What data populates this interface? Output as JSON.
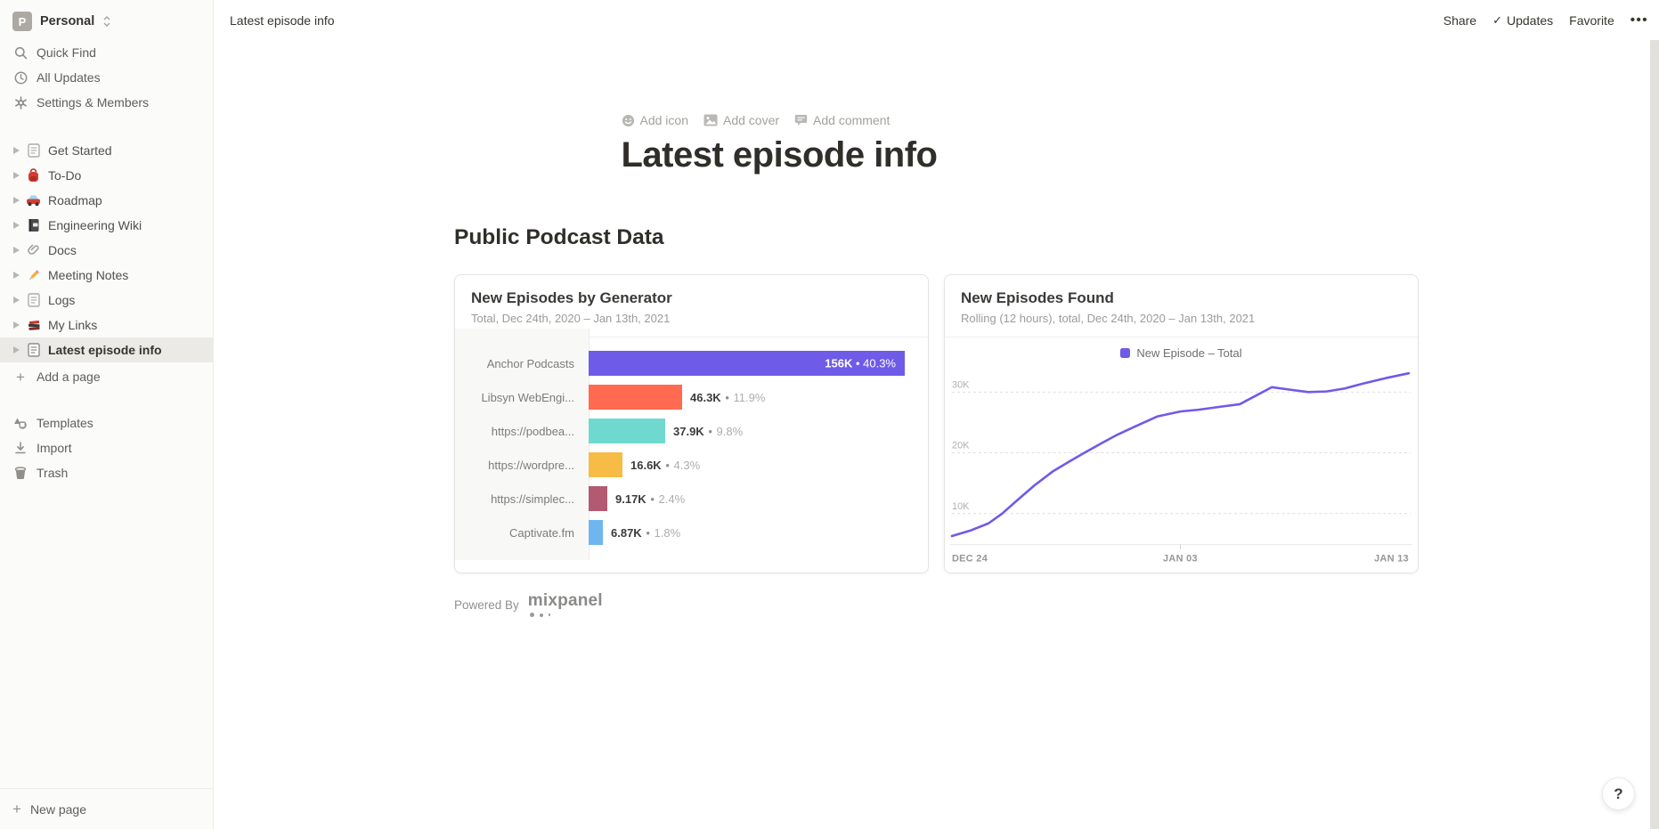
{
  "workspace": {
    "initial": "P",
    "name": "Personal"
  },
  "sidebar": {
    "menu": [
      {
        "label": "Quick Find",
        "icon": "search-icon"
      },
      {
        "label": "All Updates",
        "icon": "clock-icon"
      },
      {
        "label": "Settings & Members",
        "icon": "gear-icon"
      }
    ],
    "pages": [
      {
        "label": "Get Started",
        "icon": "page-icon"
      },
      {
        "label": "To-Do",
        "icon": "backpack-emoji"
      },
      {
        "label": "Roadmap",
        "icon": "car-emoji"
      },
      {
        "label": "Engineering Wiki",
        "icon": "notebook-emoji"
      },
      {
        "label": "Docs",
        "icon": "paperclip-emoji"
      },
      {
        "label": "Meeting Notes",
        "icon": "pencil-emoji"
      },
      {
        "label": "Logs",
        "icon": "page-icon"
      },
      {
        "label": "My Links",
        "icon": "books-emoji"
      },
      {
        "label": "Latest episode info",
        "icon": "page-icon",
        "selected": true
      }
    ],
    "add_page_label": "Add a page",
    "templates_label": "Templates",
    "import_label": "Import",
    "trash_label": "Trash",
    "new_page_label": "New page"
  },
  "topbar": {
    "breadcrumb": "Latest episode info",
    "share": "Share",
    "updates": "Updates",
    "favorite": "Favorite",
    "more": "•••",
    "check": "✓"
  },
  "page": {
    "controls": {
      "add_icon": "Add icon",
      "add_cover": "Add cover",
      "add_comment": "Add comment"
    },
    "title": "Latest episode info",
    "section_heading": "Public Podcast Data",
    "powered_by": "Powered By",
    "brand": "mixpanel"
  },
  "help_label": "?",
  "colors": {
    "accent_purple": "#6E5BE8",
    "bar_orange": "#FF6A50",
    "bar_teal": "#70D9CF",
    "bar_yellow": "#F6BC45",
    "bar_maroon": "#B25A72",
    "bar_blue": "#6FB6F0",
    "sidebar_bg": "#FBFBFA",
    "selected_row_bg": "#ECEAE7"
  },
  "chart_data": [
    {
      "type": "bar",
      "orientation": "horizontal",
      "title": "New Episodes by Generator",
      "subtitle": "Total, Dec 24th, 2020 – Jan 13th, 2021",
      "categories": [
        "Anchor Podcasts",
        "Libsyn WebEngi...",
        "https://podbea...",
        "https://wordpre...",
        "https://simplec...",
        "Captivate.fm"
      ],
      "values_k": [
        156,
        46.3,
        37.9,
        16.6,
        9.17,
        6.87
      ],
      "value_labels": [
        "156K",
        "46.3K",
        "37.9K",
        "16.6K",
        "9.17K",
        "6.87K"
      ],
      "pct_labels": [
        "40.3%",
        "11.9%",
        "9.8%",
        "4.3%",
        "2.4%",
        "1.8%"
      ],
      "colors": [
        "#6E5BE8",
        "#FF6A50",
        "#70D9CF",
        "#F6BC45",
        "#B25A72",
        "#6FB6F0"
      ],
      "max_k": 156,
      "value_inside_bar": [
        true,
        false,
        false,
        false,
        false,
        false
      ]
    },
    {
      "type": "line",
      "title": "New Episodes Found",
      "subtitle": "Rolling (12 hours), total, Dec 24th, 2020 – Jan 13th, 2021",
      "legend": [
        {
          "label": "New Episode – Total",
          "color": "#6E5BE8"
        }
      ],
      "x_ticks": [
        "DEC 24",
        "JAN 03",
        "JAN 13"
      ],
      "y_ticks": [
        "10K",
        "20K",
        "30K"
      ],
      "y_tick_values_k": [
        10,
        20,
        30
      ],
      "ylim_k": [
        4.9,
        34.5
      ],
      "grid": "dashed-horizontal",
      "legend_position": "top-center",
      "points_frac_k": [
        [
          0.0,
          6.3
        ],
        [
          0.04,
          7.2
        ],
        [
          0.08,
          8.4
        ],
        [
          0.11,
          10.0
        ],
        [
          0.14,
          12.0
        ],
        [
          0.18,
          14.6
        ],
        [
          0.22,
          16.9
        ],
        [
          0.26,
          18.7
        ],
        [
          0.29,
          20.0
        ],
        [
          0.33,
          21.7
        ],
        [
          0.36,
          22.9
        ],
        [
          0.4,
          24.3
        ],
        [
          0.45,
          26.0
        ],
        [
          0.5,
          26.8
        ],
        [
          0.54,
          27.1
        ],
        [
          0.59,
          27.6
        ],
        [
          0.63,
          28.0
        ],
        [
          0.66,
          29.2
        ],
        [
          0.7,
          30.8
        ],
        [
          0.74,
          30.4
        ],
        [
          0.78,
          30.0
        ],
        [
          0.82,
          30.1
        ],
        [
          0.86,
          30.6
        ],
        [
          0.9,
          31.4
        ],
        [
          0.95,
          32.3
        ],
        [
          1.0,
          33.1
        ]
      ]
    }
  ]
}
